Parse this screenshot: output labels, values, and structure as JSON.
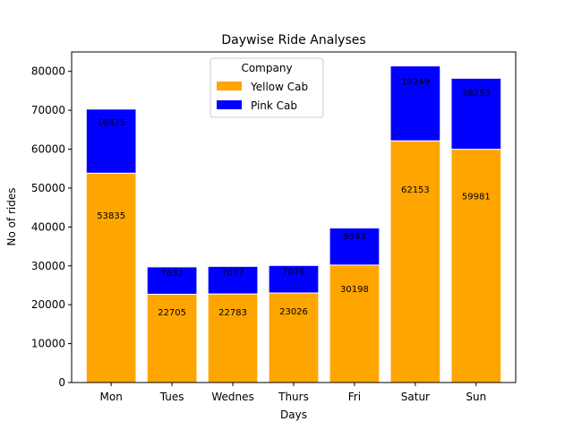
{
  "chart_data": {
    "type": "bar",
    "stacked": true,
    "title": "Daywise Ride Analyses",
    "xlabel": "Days",
    "ylabel": "No of rides",
    "categories": [
      "Mon",
      "Tues",
      "Wednes",
      "Thurs",
      "Fri",
      "Satur",
      "Sun"
    ],
    "ylim": [
      0,
      85000
    ],
    "yticks": [
      0,
      10000,
      20000,
      30000,
      40000,
      50000,
      60000,
      70000,
      80000
    ],
    "yticks_labels": [
      "0",
      "10000",
      "20000",
      "30000",
      "40000",
      "50000",
      "60000",
      "70000",
      "80000"
    ],
    "legend": {
      "title": "Company",
      "position": "top-center"
    },
    "grid": false,
    "series": [
      {
        "name": "Yellow Cab",
        "color": "#ffa500",
        "values": [
          53835,
          22705,
          22783,
          23026,
          30198,
          62153,
          59981
        ],
        "labels": [
          "53835",
          "22705",
          "22783",
          "23026",
          "30198",
          "62153",
          "59981"
        ]
      },
      {
        "name": "Pink Cab",
        "color": "#0000ff",
        "values": [
          16475,
          7032,
          7077,
          7076,
          9543,
          19249,
          18253
        ],
        "labels": [
          "16475",
          "7032",
          "7077",
          "7076",
          "9543",
          "19249",
          "18253"
        ]
      }
    ]
  }
}
